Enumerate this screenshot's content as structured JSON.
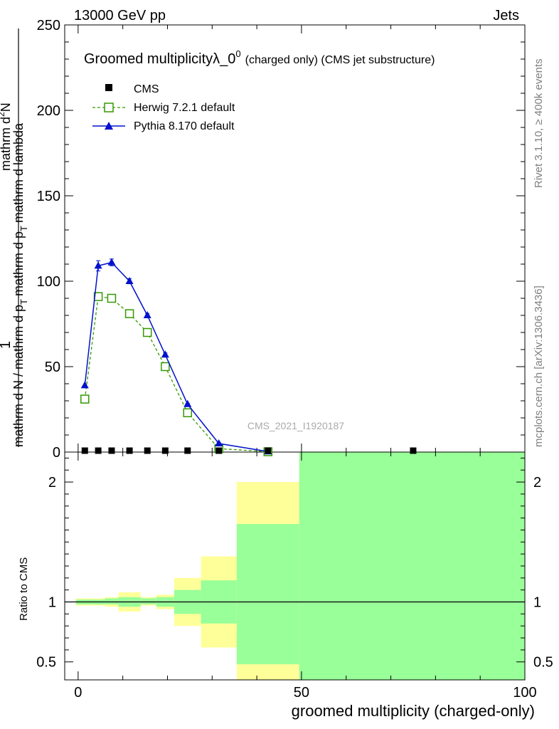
{
  "header": {
    "left": "13000 GeV pp",
    "right": "Jets"
  },
  "side_labels": {
    "rivet": "Rivet 3.1.10, ≥ 400k events",
    "mcplots": "mcplots.cern.ch [arXiv:1306.3436]"
  },
  "watermark": "CMS_2021_I1920187",
  "title": {
    "main": "Groomed multiplicity",
    "lambda": "λ_0",
    "sup": "0",
    "tail": "(charged only) (CMS jet substructure)"
  },
  "ylabel": {
    "numerator": "1",
    "denominator": "mathrm d N / mathrm d p",
    "denominator_sub": "T",
    "denominator_tail": "mathrm d p",
    "denominator_tail2": "mathrm d lambda",
    "upper": "mathrm d",
    "upper_sup": "2",
    "upper_tail": "N"
  },
  "ratio_ylabel": "Ratio to CMS",
  "xlabel": "groomed multiplicity (charged-only)",
  "legend": {
    "cms": "CMS",
    "herwig": "Herwig 7.2.1 default",
    "pythia": "Pythia 8.170 default"
  },
  "colors": {
    "cms": "#000000",
    "herwig": "#339900",
    "pythia": "#0011cc",
    "band_inner": "#99ff99",
    "band_outer": "#ffff99"
  },
  "chart_data": {
    "type": "line",
    "x_range": [
      -3,
      100
    ],
    "main_ylim": [
      0,
      250
    ],
    "ratio_ylim": [
      0.35,
      2.25
    ],
    "main_yticks": [
      "0",
      "50",
      "100",
      "150",
      "200",
      "250"
    ],
    "ratio_yticks": [
      "0.5",
      "1",
      "2"
    ],
    "xticks": [
      "0",
      "50",
      "100"
    ],
    "series": [
      {
        "name": "CMS",
        "x": [
          1.5,
          4.5,
          7.5,
          11.5,
          15.5,
          19.5,
          24.5,
          31.5,
          42.5,
          75
        ],
        "y": [
          0.2,
          0.2,
          0.2,
          0.2,
          0.2,
          0.2,
          0.2,
          0.2,
          0.2,
          0.2
        ]
      },
      {
        "name": "Herwig 7.2.1 default",
        "x": [
          1.5,
          4.5,
          7.5,
          11.5,
          15.5,
          19.5,
          24.5,
          31.5,
          42.5
        ],
        "y": [
          31,
          91,
          90,
          81,
          70,
          50,
          23,
          2,
          0.2
        ]
      },
      {
        "name": "Pythia 8.170 default",
        "x": [
          1.5,
          4.5,
          7.5,
          11.5,
          15.5,
          19.5,
          24.5,
          31.5,
          42.5
        ],
        "y": [
          39,
          109,
          111,
          100,
          80,
          57,
          28,
          5,
          0.3
        ],
        "err": [
          0,
          3,
          2,
          1.5,
          1,
          1,
          0.5,
          0.5,
          0
        ]
      }
    ],
    "ratio_bands": [
      {
        "x0": -0.5,
        "x1": 3,
        "inner": [
          0.98,
          1.02
        ],
        "outer": [
          0.97,
          1.03
        ]
      },
      {
        "x0": 3,
        "x1": 6,
        "inner": [
          0.98,
          1.02
        ],
        "outer": [
          0.97,
          1.03
        ]
      },
      {
        "x0": 6,
        "x1": 9,
        "inner": [
          0.98,
          1.03
        ],
        "outer": [
          0.96,
          1.04
        ]
      },
      {
        "x0": 9,
        "x1": 14,
        "inner": [
          0.96,
          1.04
        ],
        "outer": [
          0.92,
          1.08
        ]
      },
      {
        "x0": 14,
        "x1": 17.5,
        "inner": [
          0.98,
          1.03
        ],
        "outer": [
          0.97,
          1.04
        ]
      },
      {
        "x0": 17.5,
        "x1": 21.5,
        "inner": [
          0.96,
          1.04
        ],
        "outer": [
          0.94,
          1.06
        ]
      },
      {
        "x0": 21.5,
        "x1": 27.5,
        "inner": [
          0.9,
          1.1
        ],
        "outer": [
          0.8,
          1.2
        ]
      },
      {
        "x0": 27.5,
        "x1": 35.5,
        "inner": [
          0.82,
          1.18
        ],
        "outer": [
          0.62,
          1.38
        ]
      },
      {
        "x0": 35.5,
        "x1": 49.5,
        "inner": [
          0.48,
          1.65
        ],
        "outer": [
          0.35,
          2.0
        ]
      },
      {
        "x0": 49.5,
        "x1": 100,
        "inner": [
          0.35,
          2.25
        ],
        "outer": [
          0.35,
          2.25
        ]
      }
    ]
  }
}
